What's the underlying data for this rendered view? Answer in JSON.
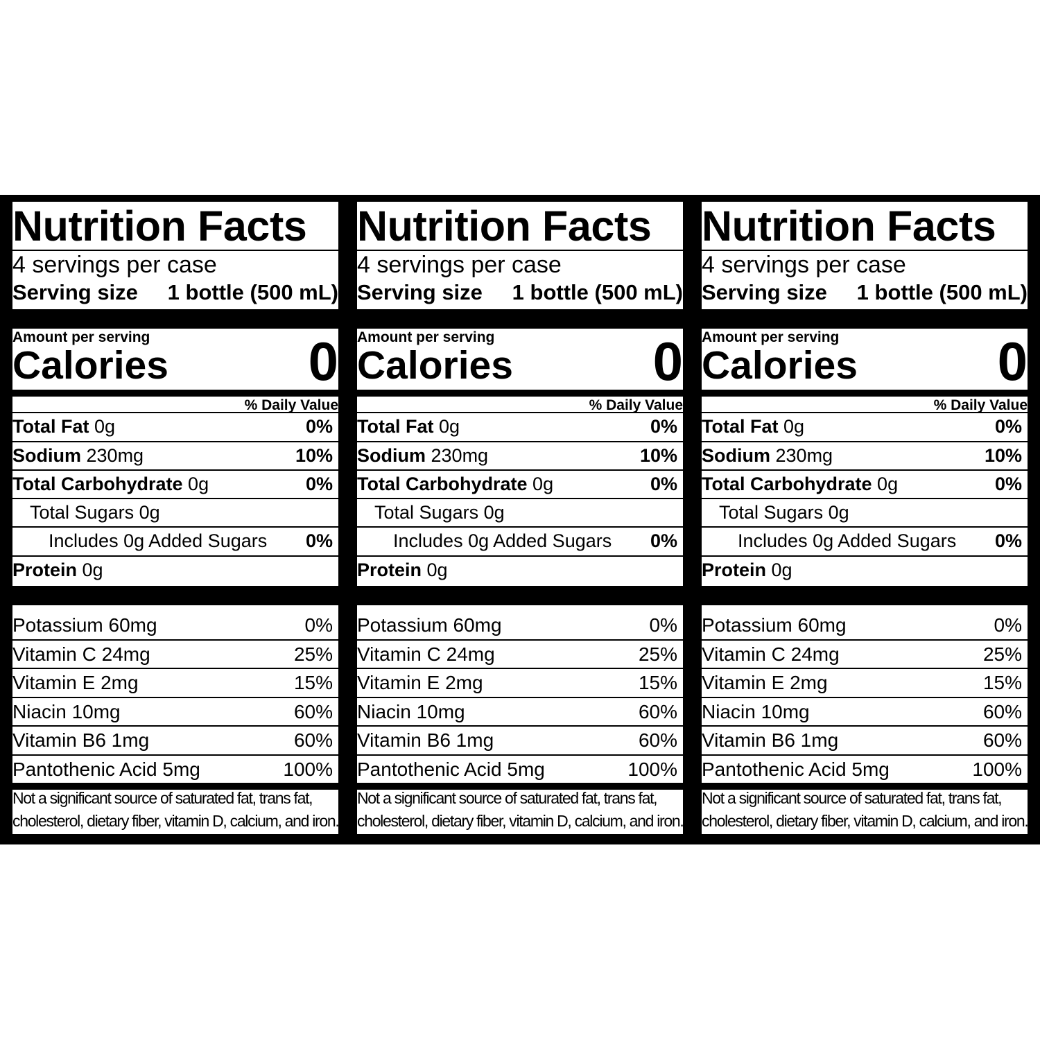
{
  "panels": [
    {
      "title": "Nutrition Facts",
      "servings": "4 servings per case",
      "serving_size_label": "Serving size",
      "serving_size_value": "1 bottle (500 mL)",
      "amount_per_serving": "Amount per serving",
      "calories_label": "Calories",
      "calories_value": "0",
      "daily_value_header": "% Daily Value",
      "nutrients": [
        {
          "name": "Total Fat",
          "amount": "0g",
          "dv": "0%"
        },
        {
          "name": "Sodium",
          "amount": "230mg",
          "dv": "10%"
        },
        {
          "name": "Total Carbohydrate",
          "amount": "0g",
          "dv": "0%"
        },
        {
          "label": "Total Sugars 0g",
          "dv": ""
        },
        {
          "label": "Includes 0g Added Sugars",
          "dv": "0%"
        },
        {
          "name": "Protein",
          "amount": "0g",
          "dv": ""
        }
      ],
      "vitamins": [
        {
          "label": "Potassium 60mg",
          "dv": "0%"
        },
        {
          "label": "Vitamin C 24mg",
          "dv": "25%"
        },
        {
          "label": "Vitamin E 2mg",
          "dv": "15%"
        },
        {
          "label": "Niacin 10mg",
          "dv": "60%"
        },
        {
          "label": "Vitamin B6 1mg",
          "dv": "60%"
        },
        {
          "label": "Pantothenic Acid 5mg",
          "dv": "100%"
        }
      ],
      "footnote_line1": "Not a significant source of saturated fat, trans fat,",
      "footnote_line2": "cholesterol, dietary fiber, vitamin D, calcium, and iron."
    },
    {
      "title": "Nutrition Facts",
      "servings": "4 servings per case",
      "serving_size_label": "Serving size",
      "serving_size_value": "1 bottle (500 mL)",
      "amount_per_serving": "Amount per serving",
      "calories_label": "Calories",
      "calories_value": "0",
      "daily_value_header": "% Daily Value",
      "nutrients": [
        {
          "name": "Total Fat",
          "amount": "0g",
          "dv": "0%"
        },
        {
          "name": "Sodium",
          "amount": "230mg",
          "dv": "10%"
        },
        {
          "name": "Total Carbohydrate",
          "amount": "0g",
          "dv": "0%"
        },
        {
          "label": "Total Sugars 0g",
          "dv": ""
        },
        {
          "label": "Includes 0g Added Sugars",
          "dv": "0%"
        },
        {
          "name": "Protein",
          "amount": "0g",
          "dv": ""
        }
      ],
      "vitamins": [
        {
          "label": "Potassium 60mg",
          "dv": "0%"
        },
        {
          "label": "Vitamin C 24mg",
          "dv": "25%"
        },
        {
          "label": "Vitamin E 2mg",
          "dv": "15%"
        },
        {
          "label": "Niacin 10mg",
          "dv": "60%"
        },
        {
          "label": "Vitamin B6 1mg",
          "dv": "60%"
        },
        {
          "label": "Pantothenic Acid 5mg",
          "dv": "100%"
        }
      ],
      "footnote_line1": "Not a significant source of saturated fat, trans fat,",
      "footnote_line2": "cholesterol, dietary fiber, vitamin D, calcium, and iron."
    },
    {
      "title": "Nutrition Facts",
      "servings": "4 servings per case",
      "serving_size_label": "Serving size",
      "serving_size_value": "1 bottle (500 mL)",
      "amount_per_serving": "Amount per serving",
      "calories_label": "Calories",
      "calories_value": "0",
      "daily_value_header": "% Daily Value",
      "nutrients": [
        {
          "name": "Total Fat",
          "amount": "0g",
          "dv": "0%"
        },
        {
          "name": "Sodium",
          "amount": "230mg",
          "dv": "10%"
        },
        {
          "name": "Total Carbohydrate",
          "amount": "0g",
          "dv": "0%"
        },
        {
          "label": "Total Sugars 0g",
          "dv": ""
        },
        {
          "label": "Includes 0g Added Sugars",
          "dv": "0%"
        },
        {
          "name": "Protein",
          "amount": "0g",
          "dv": ""
        }
      ],
      "vitamins": [
        {
          "label": "Potassium 60mg",
          "dv": "0%"
        },
        {
          "label": "Vitamin C 24mg",
          "dv": "25%"
        },
        {
          "label": "Vitamin E 2mg",
          "dv": "15%"
        },
        {
          "label": "Niacin 10mg",
          "dv": "60%"
        },
        {
          "label": "Vitamin B6 1mg",
          "dv": "60%"
        },
        {
          "label": "Pantothenic Acid 5mg",
          "dv": "100%"
        }
      ],
      "footnote_line1": "Not a significant source of saturated fat, trans fat,",
      "footnote_line2": "cholesterol, dietary fiber, vitamin D, calcium, and iron."
    }
  ]
}
